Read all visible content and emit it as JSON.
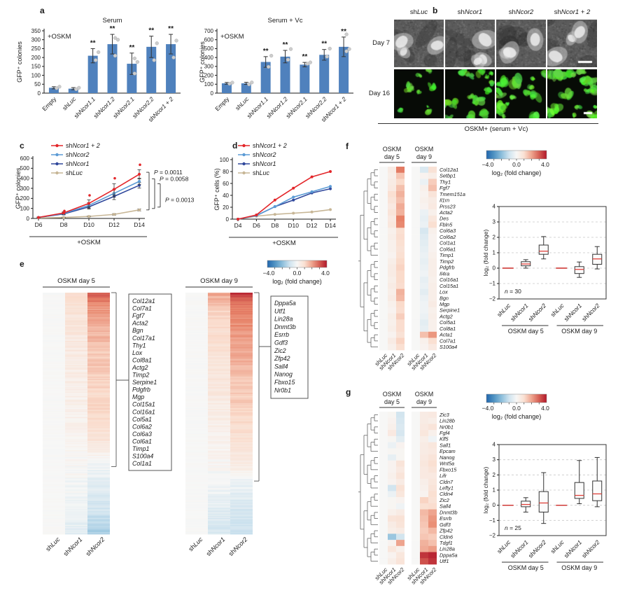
{
  "figure": {
    "panels": {
      "a": "a",
      "b": "b",
      "c": "c",
      "d": "d",
      "e": "e",
      "f": "f",
      "g": "g"
    }
  },
  "colorbar": {
    "ticks": [
      "−4.0",
      "0.0",
      "4.0"
    ],
    "label": "log₂ (fold change)",
    "min": -4,
    "max": 4
  },
  "panel_b": {
    "columns": [
      "shLuc",
      "shNcor1",
      "shNcor2",
      "shNcor1 + 2"
    ],
    "rows": [
      "Day 7",
      "Day 16"
    ],
    "caption": "OSKM+ (serum + Vc)"
  },
  "chart_data": [
    {
      "id": "a_serum",
      "type": "bar",
      "title": "Serum",
      "annotation": "+OSKM",
      "ylabel": "GFP⁺ colonies",
      "ylim": [
        0,
        350
      ],
      "ytick_step": 50,
      "categories": [
        "Empty",
        "shLuc",
        "shNcor1.1",
        "shNcor1.2",
        "shNcor2.1",
        "shNcor2.2",
        "shNcor1 + 2"
      ],
      "values": [
        30,
        25,
        210,
        275,
        165,
        260,
        275
      ],
      "errors": [
        6,
        6,
        40,
        55,
        60,
        60,
        55
      ],
      "sig": [
        "",
        "",
        "**",
        "**",
        "**",
        "**",
        "**"
      ],
      "points": [
        [
          28,
          36
        ],
        [
          22,
          30
        ],
        [
          185,
          230
        ],
        [
          210,
          300,
          310
        ],
        [
          110,
          175,
          195
        ],
        [
          185,
          280
        ],
        [
          200,
          295
        ]
      ]
    },
    {
      "id": "a_serum_vc",
      "type": "bar",
      "title": "Serum + Vc",
      "annotation": "+OSKM",
      "ylabel": "GFP⁺ colonies",
      "ylim": [
        0,
        700
      ],
      "ytick_step": 100,
      "categories": [
        "Empty",
        "shLuc",
        "shNcor1.1",
        "shNcor1.2",
        "shNcor2.1",
        "shNcor2.2",
        "shNcor1 + 2"
      ],
      "values": [
        110,
        110,
        350,
        410,
        320,
        430,
        520
      ],
      "errors": [
        10,
        12,
        60,
        70,
        25,
        60,
        110
      ],
      "sig": [
        "",
        "",
        "**",
        "**",
        "**",
        "**",
        "**"
      ],
      "points": [
        [
          105,
          118
        ],
        [
          98,
          120
        ],
        [
          295,
          420
        ],
        [
          375,
          495
        ],
        [
          330,
          345
        ],
        [
          410,
          500
        ],
        [
          470,
          495,
          660
        ]
      ]
    },
    {
      "id": "c_line",
      "type": "line",
      "ylabel": "GFP⁺ colonies",
      "xlabel": "+OSKM",
      "x": [
        "D6",
        "D8",
        "D10",
        "D12",
        "D14"
      ],
      "ylim": [
        0,
        600
      ],
      "ytick_step": 100,
      "series": [
        {
          "name": "shNcor1 + 2",
          "color": "#e3262a",
          "values": [
            10,
            55,
            150,
            290,
            440
          ],
          "errors": [
            4,
            12,
            35,
            55,
            45
          ]
        },
        {
          "name": "shNcor2",
          "color": "#5b9bd5",
          "values": [
            10,
            50,
            130,
            250,
            370
          ],
          "errors": [
            4,
            10,
            28,
            38,
            30
          ]
        },
        {
          "name": "shNcor1",
          "color": "#30489c",
          "values": [
            10,
            45,
            115,
            220,
            330
          ],
          "errors": [
            4,
            10,
            22,
            32,
            28
          ]
        },
        {
          "name": "shLuc",
          "color": "#c7b696",
          "values": [
            5,
            10,
            20,
            40,
            85
          ],
          "errors": [
            2,
            3,
            5,
            8,
            10
          ]
        }
      ],
      "outliers": {
        "color": "#e3262a",
        "points": [
          [
            1,
            75
          ],
          [
            2,
            230
          ],
          [
            3,
            400
          ],
          [
            4,
            535
          ]
        ]
      },
      "pvalues": [
        "P = 0.0011",
        "P = 0.0058",
        "P = 0.0013"
      ]
    },
    {
      "id": "d_line",
      "type": "line",
      "ylabel": "GFP⁺ cells (%)",
      "xlabel": "+OSKM",
      "x": [
        "D4",
        "D6",
        "D8",
        "D10",
        "D12",
        "D14"
      ],
      "ylim": [
        0,
        100
      ],
      "ytick_step": 20,
      "series": [
        {
          "name": "shNcor1 + 2",
          "color": "#e3262a",
          "values": [
            0,
            7,
            32,
            52,
            71,
            80
          ]
        },
        {
          "name": "shNcor2",
          "color": "#5b9bd5",
          "values": [
            0,
            6,
            21,
            37,
            46,
            55
          ]
        },
        {
          "name": "shNcor1",
          "color": "#30489c",
          "values": [
            0,
            6,
            21,
            32,
            44,
            51
          ]
        },
        {
          "name": "shLuc",
          "color": "#c7b696",
          "values": [
            0,
            5,
            8,
            10,
            12,
            16
          ]
        }
      ]
    },
    {
      "id": "e_day5",
      "type": "heatmap-strip",
      "title": "OSKM day 5",
      "columns": [
        "shLuc",
        "shNcor1",
        "shNcor2"
      ],
      "rows": 210,
      "profiles": {
        "shLuc": [
          [
            0,
            0
          ],
          [
            1,
            0
          ]
        ],
        "shNcor1": [
          [
            0,
            1.1
          ],
          [
            0.08,
            0.8
          ],
          [
            0.3,
            0.5
          ],
          [
            0.55,
            0.25
          ],
          [
            0.7,
            0.05
          ],
          [
            0.85,
            -0.15
          ],
          [
            1,
            -0.55
          ]
        ],
        "shNcor2": [
          [
            0,
            3.1
          ],
          [
            0.06,
            2.2
          ],
          [
            0.15,
            1.8
          ],
          [
            0.3,
            1.4
          ],
          [
            0.5,
            1.1
          ],
          [
            0.6,
            0.8
          ],
          [
            0.66,
            0.4
          ],
          [
            0.7,
            -0.1
          ],
          [
            0.8,
            -0.5
          ],
          [
            0.9,
            -0.9
          ],
          [
            1,
            -1.7
          ]
        ]
      },
      "genes": [
        "Col12a1",
        "Col7a1",
        "Fgf7",
        "Acta2",
        "Bgn",
        "Col17a1",
        "Thy1",
        "Lox",
        "Col8a1",
        "Actg2",
        "Timp2",
        "Serpine1",
        "Pdgfrb",
        "Mgp",
        "Col15a1",
        "Col16a1",
        "Col5a1",
        "Col6a2",
        "Col6a3",
        "Col6a1",
        "Timp1",
        "S100a4",
        "Col1a1"
      ],
      "bracket_span": [
        0,
        0.72
      ]
    },
    {
      "id": "e_day9",
      "type": "heatmap-strip",
      "title": "OSKM day 9",
      "columns": [
        "shLuc",
        "shNcor1",
        "shNcor2"
      ],
      "rows": 210,
      "profiles": {
        "shLuc": [
          [
            0,
            0
          ],
          [
            1,
            0
          ]
        ],
        "shNcor1": [
          [
            0,
            2.0
          ],
          [
            0.08,
            1.2
          ],
          [
            0.3,
            0.8
          ],
          [
            0.5,
            0.45
          ],
          [
            0.68,
            0.15
          ],
          [
            0.78,
            -0.1
          ],
          [
            0.88,
            -0.45
          ],
          [
            1,
            -0.8
          ]
        ],
        "shNcor2": [
          [
            0,
            3.6
          ],
          [
            0.05,
            2.6
          ],
          [
            0.2,
            2.0
          ],
          [
            0.4,
            1.5
          ],
          [
            0.6,
            1.0
          ],
          [
            0.72,
            0.5
          ],
          [
            0.78,
            -0.2
          ],
          [
            0.88,
            -0.7
          ],
          [
            1,
            -1.1
          ]
        ]
      },
      "genes": [
        "Dppa5a",
        "Utf1",
        "Lin28a",
        "Dnmt3b",
        "Esrrb",
        "Gdf3",
        "Zic2",
        "Zfp42",
        "Sall4",
        "Nanog",
        "Fbxo15",
        "Nr0b1"
      ],
      "bracket_span": [
        0,
        0.78
      ]
    },
    {
      "id": "f_heatmap",
      "type": "heatmap",
      "group_titles": [
        [
          "OSKM",
          "day 5"
        ],
        [
          "OSKM",
          "day 9"
        ]
      ],
      "columns": [
        "shLuc",
        "shNcor1",
        "shNcor2",
        "shLuc",
        "shNcor1",
        "shNcor2"
      ],
      "genes": [
        "Col12a1",
        "Setbp1",
        "Thy1",
        "Fgf7",
        "Tmem151a",
        "Il1rn",
        "Prss23",
        "Acta2",
        "Des",
        "Fbln5",
        "Col6a3",
        "Col6a2",
        "Col1a1",
        "Col6a1",
        "Timp1",
        "Timp2",
        "Pdgfrb",
        "Il4ra",
        "Col16a1",
        "Col15a1",
        "Lox",
        "Bgn",
        "Mgp",
        "Serpine1",
        "Actg2",
        "Col5a1",
        "Col8a1",
        "Acta1",
        "Col7a1",
        "S100a4"
      ],
      "values": [
        [
          0,
          0.5,
          2.6,
          0,
          -0.7,
          0.9
        ],
        [
          0,
          0.4,
          1.5,
          0,
          0.2,
          0.4
        ],
        [
          0,
          0.5,
          1.2,
          0,
          -0.3,
          1.4
        ],
        [
          0,
          0.6,
          1.6,
          0,
          0.3,
          1.6
        ],
        [
          0,
          1.0,
          1.8,
          0,
          0.2,
          0.8
        ],
        [
          0,
          0.8,
          1.6,
          0,
          0.3,
          0.5
        ],
        [
          0,
          0.6,
          1.9,
          0,
          0.2,
          0.6
        ],
        [
          0,
          0.8,
          1.8,
          0,
          -0.3,
          0.3
        ],
        [
          0,
          0.6,
          2.5,
          0,
          -0.4,
          0.7
        ],
        [
          0,
          0.7,
          2.4,
          0,
          -0.3,
          1.0
        ],
        [
          0,
          0.3,
          1.0,
          0,
          -0.8,
          0.3
        ],
        [
          0,
          0.4,
          1.1,
          0,
          -0.6,
          0.2
        ],
        [
          0,
          0.3,
          1.0,
          0,
          -0.5,
          0.2
        ],
        [
          0,
          0.3,
          0.9,
          0,
          -0.4,
          0.2
        ],
        [
          0,
          0.2,
          1.0,
          0,
          -0.3,
          0.3
        ],
        [
          0,
          0.4,
          1.2,
          0,
          -0.4,
          0.4
        ],
        [
          0,
          0.5,
          1.3,
          0,
          -0.3,
          0.4
        ],
        [
          0,
          0.5,
          1.2,
          0,
          -0.2,
          0.4
        ],
        [
          0,
          0.4,
          1.2,
          0,
          -0.4,
          0.3
        ],
        [
          0,
          0.5,
          1.1,
          0,
          -0.3,
          0.4
        ],
        [
          0,
          0.4,
          1.8,
          0,
          -0.5,
          0.4
        ],
        [
          0,
          0.5,
          1.7,
          0,
          -0.3,
          0.4
        ],
        [
          0,
          0.3,
          1.2,
          0,
          -0.2,
          0.5
        ],
        [
          0,
          0.2,
          1.1,
          0,
          -0.2,
          0.3
        ],
        [
          0,
          0.4,
          1.4,
          0,
          -0.3,
          0.4
        ],
        [
          0,
          0.3,
          1.1,
          0,
          -0.5,
          0.3
        ],
        [
          0,
          0.4,
          1.1,
          0,
          -0.4,
          0.3
        ],
        [
          0,
          0.2,
          0.9,
          0,
          1.6,
          2.2
        ],
        [
          0,
          0.5,
          1.3,
          0,
          0.3,
          1.0
        ],
        [
          0,
          0.3,
          1.0,
          0,
          0.2,
          0.6
        ]
      ]
    },
    {
      "id": "f_box",
      "type": "box",
      "ylabel": "log₂ (fold change)",
      "ylim": [
        -2,
        4
      ],
      "n_label": "n = 30",
      "group_labels": [
        "OSKM day 5",
        "OSKM day 9"
      ],
      "categories": [
        "shLuc",
        "shNcor1",
        "shNcor2",
        "shLuc",
        "shNcor1",
        "shNcor2"
      ],
      "boxes": [
        {
          "dash": 0
        },
        {
          "whislo": 0,
          "q1": 0.15,
          "med": 0.27,
          "q3": 0.42,
          "whishi": 0.55
        },
        {
          "whislo": 0.6,
          "q1": 0.9,
          "med": 1.1,
          "q3": 1.5,
          "whishi": 2.05
        },
        {
          "dash": 0
        },
        {
          "whislo": -0.6,
          "q1": -0.35,
          "med": -0.08,
          "q3": 0.1,
          "whishi": 0.4
        },
        {
          "whislo": -0.05,
          "q1": 0.25,
          "med": 0.6,
          "q3": 0.9,
          "whishi": 1.4
        }
      ]
    },
    {
      "id": "g_heatmap",
      "type": "heatmap",
      "group_titles": [
        [
          "OSKM",
          "day 5"
        ],
        [
          "OSKM",
          "day 9"
        ]
      ],
      "columns": [
        "shLuc",
        "shNcor1",
        "shNcor2",
        "shLuc",
        "shNcor1",
        "shNcor2"
      ],
      "genes": [
        "Zic3",
        "Lin28b",
        "Nr0b1",
        "Fgf4",
        "Klf5",
        "Sall1",
        "Epcam",
        "Nanog",
        "Wnt5a",
        "Fbxo15",
        "Lifr",
        "Cldn7",
        "Lefty1",
        "Cldn4",
        "Zic2",
        "Sall4",
        "Dnmt3b",
        "Esrrb",
        "Gdf3",
        "Zfp42",
        "Cldn6",
        "Tdgf1",
        "Lin28a",
        "Dppa5a",
        "Utf1"
      ],
      "values": [
        [
          0,
          0.1,
          -0.9,
          0,
          0.5,
          0.6
        ],
        [
          0,
          0.2,
          -0.8,
          0,
          0.5,
          0.4
        ],
        [
          0,
          0.3,
          -0.7,
          0,
          0.6,
          0.8
        ],
        [
          0,
          0.6,
          -0.8,
          0,
          0.7,
          0.3
        ],
        [
          0,
          0.1,
          -0.5,
          0,
          0.4,
          -0.2
        ],
        [
          0,
          -0.3,
          0.2,
          0,
          0.5,
          0.7
        ],
        [
          0,
          0.1,
          0.1,
          0,
          0.5,
          0.6
        ],
        [
          0,
          -0.4,
          0.1,
          0,
          0.6,
          0.8
        ],
        [
          0,
          0.2,
          0.8,
          0,
          0.7,
          1.0
        ],
        [
          0,
          0.2,
          0.6,
          0,
          0.6,
          0.8
        ],
        [
          0,
          0.3,
          0.8,
          0,
          0.6,
          0.6
        ],
        [
          0,
          0.2,
          0.5,
          0,
          0.4,
          0.7
        ],
        [
          0,
          -0.9,
          0.9,
          0,
          0.3,
          0.8
        ],
        [
          0,
          -0.3,
          0.7,
          0,
          0.2,
          1.0
        ],
        [
          0,
          0.1,
          0.2,
          0,
          1.3,
          0.9
        ],
        [
          0,
          0.1,
          -0.2,
          0,
          1.0,
          1.1
        ],
        [
          0,
          0.3,
          0.5,
          0,
          1.7,
          2.0
        ],
        [
          0,
          0.8,
          0.9,
          0,
          1.6,
          2.2
        ],
        [
          0,
          0.5,
          0.8,
          0,
          1.5,
          2.3
        ],
        [
          0,
          0.4,
          0.5,
          0,
          1.4,
          1.7
        ],
        [
          0,
          -1.8,
          -0.9,
          0,
          1.5,
          1.4
        ],
        [
          0,
          0.2,
          2.0,
          0,
          1.8,
          1.6
        ],
        [
          0,
          0.7,
          0.3,
          0,
          1.9,
          2.1
        ],
        [
          0,
          0.2,
          0.7,
          0,
          3.6,
          3.8
        ],
        [
          0,
          0.4,
          0.8,
          0,
          3.2,
          3.6
        ]
      ]
    },
    {
      "id": "g_box",
      "type": "box",
      "ylabel": "log₂ (fold change)",
      "ylim": [
        -2,
        4
      ],
      "n_label": "n = 25",
      "group_labels": [
        "OSKM day 5",
        "OSKM day 9"
      ],
      "categories": [
        "shLuc",
        "shNcor1",
        "shNcor2",
        "shLuc",
        "shNcor1",
        "shNcor2"
      ],
      "boxes": [
        {
          "dash": 0
        },
        {
          "whislo": -0.45,
          "q1": -0.1,
          "med": 0.05,
          "q3": 0.27,
          "whishi": 0.5
        },
        {
          "whislo": -1.2,
          "q1": -0.45,
          "med": 0.15,
          "q3": 0.9,
          "whishi": 2.15
        },
        {
          "dash": 0
        },
        {
          "whislo": 0.1,
          "q1": 0.45,
          "med": 0.65,
          "q3": 1.5,
          "whishi": 2.95
        },
        {
          "whislo": -0.1,
          "q1": 0.3,
          "med": 0.75,
          "q3": 1.6,
          "whishi": 3.15
        }
      ]
    }
  ]
}
